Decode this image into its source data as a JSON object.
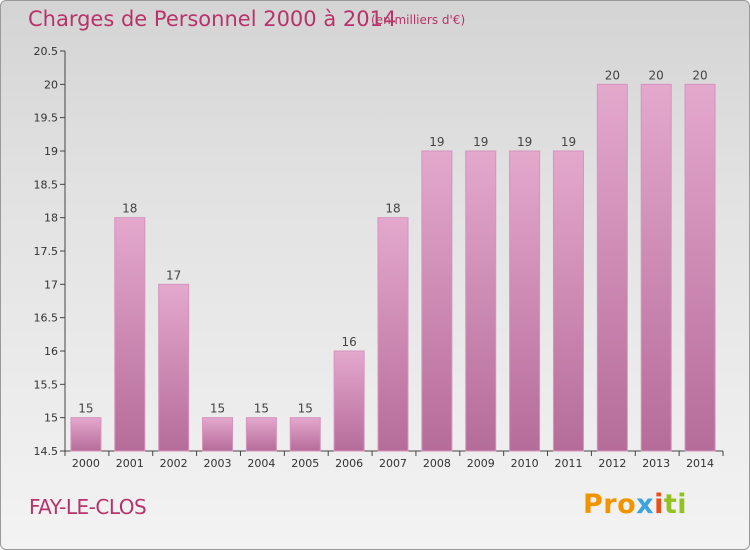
{
  "header": {
    "title": "Charges de Personnel 2000 à 2014",
    "subtitle": "(en milliers d'€)"
  },
  "footer": {
    "commune": "FAY-LE-CLOS",
    "logo_parts": [
      "Pro",
      "x",
      "i",
      "ti"
    ]
  },
  "colors": {
    "accent": "#b8336a",
    "bar_top": "#e4a8cd",
    "bar_bottom": "#b56c99",
    "bar_border": "#d693bd"
  },
  "chart_data": {
    "type": "bar",
    "title": "Charges de Personnel 2000 à 2014",
    "subtitle": "(en milliers d'€)",
    "categories": [
      "2000",
      "2001",
      "2002",
      "2003",
      "2004",
      "2005",
      "2006",
      "2007",
      "2008",
      "2009",
      "2010",
      "2011",
      "2012",
      "2013",
      "2014"
    ],
    "values": [
      15,
      18,
      17,
      15,
      15,
      15,
      16,
      18,
      19,
      19,
      19,
      19,
      20,
      20,
      20
    ],
    "ylim": [
      14.5,
      20.5
    ],
    "yticks": [
      "14.5",
      "15",
      "15.5",
      "16",
      "16.5",
      "17",
      "17.5",
      "18",
      "18.5",
      "19",
      "19.5",
      "20",
      "20.5"
    ],
    "grid": false,
    "xlabel": "",
    "ylabel": ""
  }
}
